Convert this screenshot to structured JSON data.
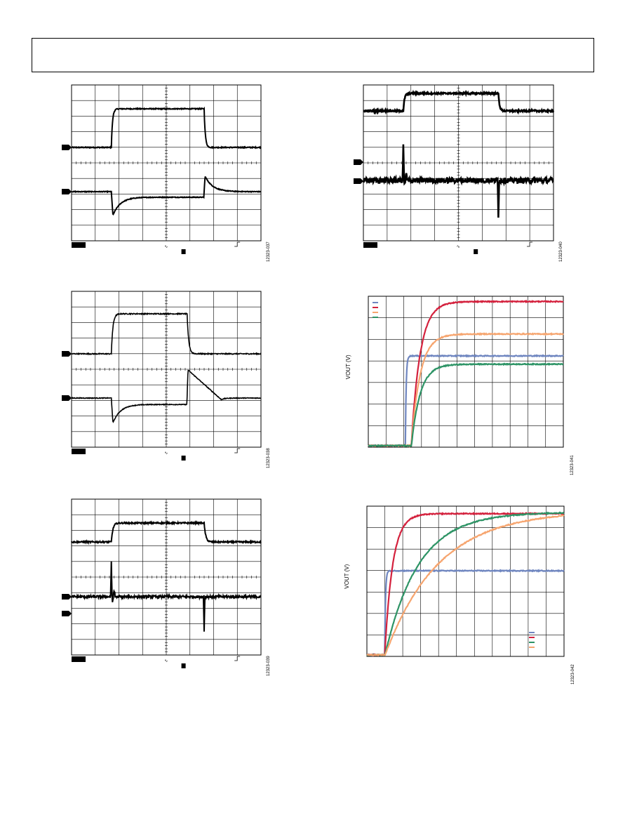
{
  "page": {
    "figure_ids": [
      "12323-037",
      "12323-038",
      "12323-039",
      "12323-040",
      "12323-041",
      "12323-042"
    ]
  },
  "chart_data": [
    {
      "type": "line",
      "id": "scope-1",
      "traces": [
        {
          "shape": "pulse",
          "base": 0,
          "high": 1,
          "rise": 0.21,
          "fall": 0.7,
          "tau": 0.006,
          "noise": 0.004
        },
        {
          "shape": "droop",
          "base": 0,
          "dip": -1,
          "over": 0.55,
          "rise": 0.21,
          "fall": 0.7,
          "tau": 0.04,
          "settle": -0.2,
          "noise": 0.004
        }
      ],
      "markers": 2
    },
    {
      "type": "line",
      "id": "scope-2",
      "traces": [
        {
          "shape": "pulse",
          "base": 0,
          "high": 1,
          "rise": 0.21,
          "fall": 0.61,
          "tau": 0.008,
          "noise": 0.004
        },
        {
          "shape": "droop",
          "base": 0,
          "dip": -1,
          "over": 1.0,
          "rise": 0.21,
          "fall": 0.61,
          "tau": 0.04,
          "settle": -0.22,
          "noise": 0.004,
          "slowDecay": true
        }
      ],
      "markers": 2
    },
    {
      "type": "line",
      "id": "scope-3",
      "traces": [
        {
          "shape": "pulse",
          "base": 0,
          "high": 1,
          "rise": 0.21,
          "fall": 0.7,
          "tau": 0.008,
          "noise": 0.012
        },
        {
          "shape": "spikes",
          "base": 0,
          "spikeUp": 1.0,
          "spikeDown": -1.0,
          "rise": 0.21,
          "fall": 0.7,
          "noise": 0.012
        }
      ],
      "markers": 2
    },
    {
      "type": "line",
      "id": "scope-4",
      "traces": [
        {
          "shape": "pulse",
          "base": 0,
          "high": 1,
          "rise": 0.21,
          "fall": 0.71,
          "tau": 0.006,
          "noise": 0.015
        },
        {
          "shape": "spikes",
          "base": 0,
          "spikeUp": 1.0,
          "spikeDown": -1.0,
          "rise": 0.21,
          "fall": 0.71,
          "noise": 0.025
        }
      ],
      "markers": 2
    },
    {
      "type": "line",
      "id": "startup-1",
      "ylabel": "VOUT (V)",
      "legend_position": "top-left",
      "series": [
        {
          "color": "#6f86c0",
          "start": 0.19,
          "final": 0.605,
          "tau": 0.004
        },
        {
          "color": "#d4213d",
          "start": 0.22,
          "final": 0.965,
          "tau": 0.045
        },
        {
          "color": "#f6a56f",
          "start": 0.22,
          "final": 0.75,
          "tau": 0.045
        },
        {
          "color": "#2e9466",
          "start": 0.22,
          "final": 0.55,
          "tau": 0.045
        }
      ]
    },
    {
      "type": "line",
      "id": "startup-2",
      "ylabel": "VOUT (V)",
      "legend_position": "bottom-right",
      "series": [
        {
          "color": "#6f86c0",
          "start": 0.09,
          "final": 0.57,
          "tau": 0.004
        },
        {
          "color": "#d4213d",
          "start": 0.09,
          "final": 0.95,
          "tau": 0.04
        },
        {
          "color": "#2e9466",
          "start": 0.09,
          "final": 0.96,
          "tau": 0.17
        },
        {
          "color": "#f6a56f",
          "start": 0.09,
          "final": 0.97,
          "tau": 0.27
        }
      ]
    }
  ]
}
